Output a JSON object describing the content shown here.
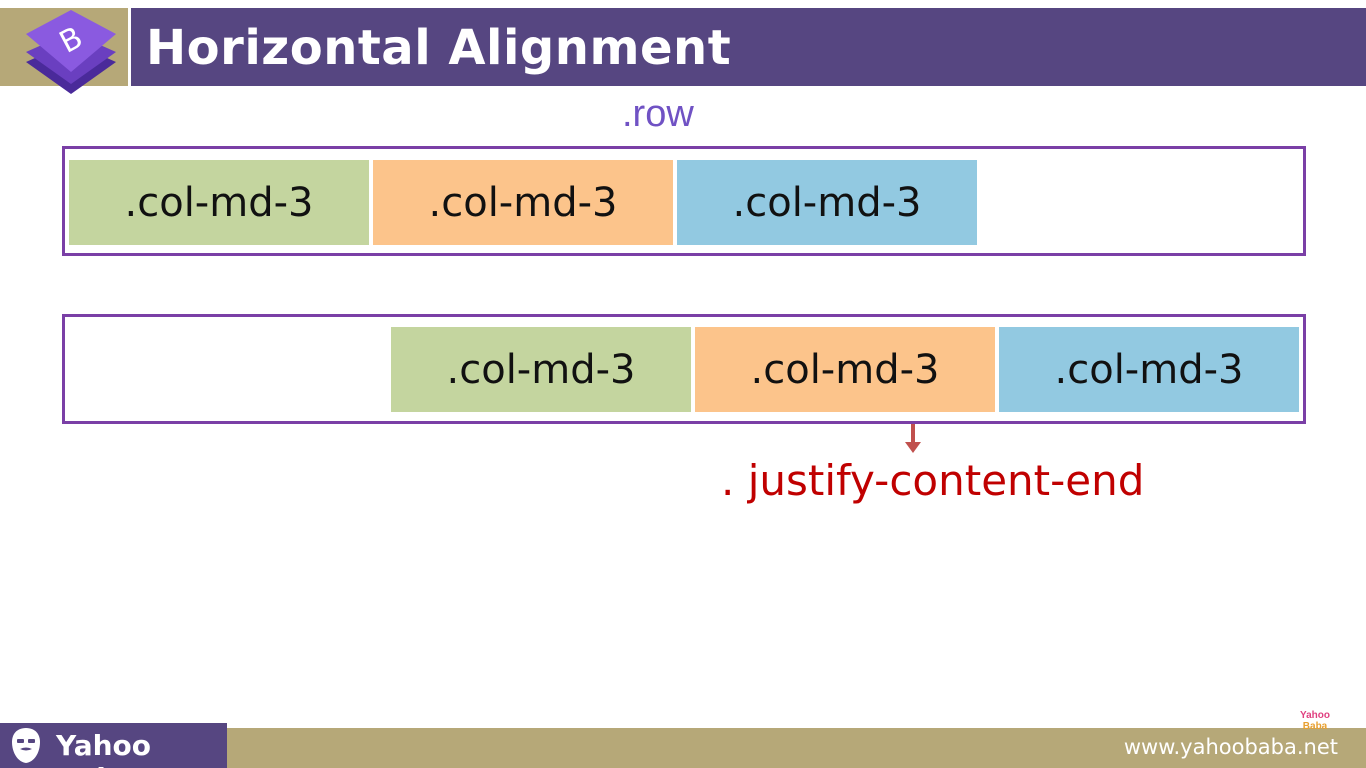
{
  "header": {
    "title": "Horizontal Alignment",
    "logo_letter": "B",
    "bar_color": "#564681",
    "accent_color": "#b6a878"
  },
  "diagram": {
    "row_label": ".row",
    "row1": {
      "cols": [
        {
          "label": ".col-md-3",
          "color": "#c4d59f"
        },
        {
          "label": ".col-md-3",
          "color": "#fcc48b"
        },
        {
          "label": ".col-md-3",
          "color": "#92c9e1"
        }
      ]
    },
    "row2": {
      "cols": [
        {
          "label": ".col-md-3",
          "color": "#c4d59f"
        },
        {
          "label": ".col-md-3",
          "color": "#fcc48b"
        },
        {
          "label": ".col-md-3",
          "color": "#92c9e1"
        }
      ]
    },
    "annotation": ". justify-content-end",
    "annotation_color": "#c00000",
    "arrow_icon": "arrow-down-icon"
  },
  "footer": {
    "brand": "Yahoo Baba",
    "brand_icon": "bearded-face-icon",
    "url": "www.yahoobaba.net",
    "watermark_line1": "Yahoo",
    "watermark_line2": "Baba"
  }
}
